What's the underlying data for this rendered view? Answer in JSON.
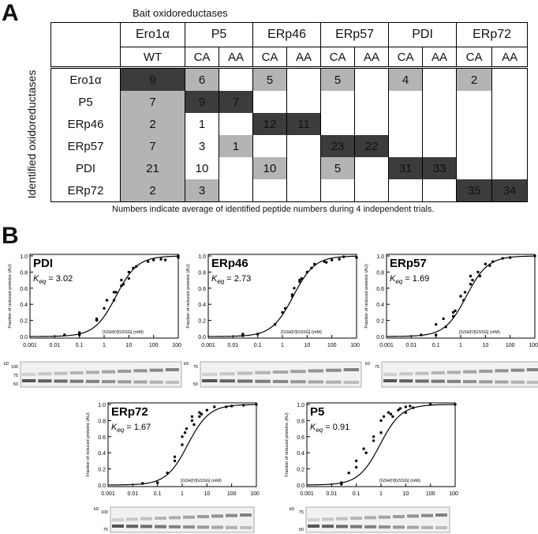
{
  "panel_a": {
    "letter": "A",
    "bait_title": "Bait oxidoreductases",
    "identified_label": "Identified oxidoreductases",
    "bait_groups": [
      {
        "name": "Ero1α",
        "variants": [
          "WT"
        ]
      },
      {
        "name": "P5",
        "variants": [
          "CA",
          "AA"
        ]
      },
      {
        "name": "ERp46",
        "variants": [
          "CA",
          "AA"
        ]
      },
      {
        "name": "ERp57",
        "variants": [
          "CA",
          "AA"
        ]
      },
      {
        "name": "PDI",
        "variants": [
          "CA",
          "AA"
        ]
      },
      {
        "name": "ERp72",
        "variants": [
          "CA",
          "AA"
        ]
      }
    ],
    "rows": [
      {
        "name": "Ero1α",
        "cells": [
          {
            "v": "9",
            "s": "dark"
          },
          {
            "v": "6",
            "s": "light"
          },
          {
            "v": "",
            "s": ""
          },
          {
            "v": "5",
            "s": "light"
          },
          {
            "v": "",
            "s": ""
          },
          {
            "v": "5",
            "s": "light"
          },
          {
            "v": "",
            "s": ""
          },
          {
            "v": "4",
            "s": "light"
          },
          {
            "v": "",
            "s": ""
          },
          {
            "v": "2",
            "s": "light"
          },
          {
            "v": "",
            "s": ""
          }
        ]
      },
      {
        "name": "P5",
        "cells": [
          {
            "v": "7",
            "s": "light"
          },
          {
            "v": "9",
            "s": "dark"
          },
          {
            "v": "7",
            "s": "dark"
          },
          {
            "v": "",
            "s": ""
          },
          {
            "v": "",
            "s": ""
          },
          {
            "v": "",
            "s": ""
          },
          {
            "v": "",
            "s": ""
          },
          {
            "v": "",
            "s": ""
          },
          {
            "v": "",
            "s": ""
          },
          {
            "v": "",
            "s": ""
          },
          {
            "v": "",
            "s": ""
          }
        ]
      },
      {
        "name": "ERp46",
        "cells": [
          {
            "v": "2",
            "s": "light"
          },
          {
            "v": "1",
            "s": ""
          },
          {
            "v": "",
            "s": ""
          },
          {
            "v": "12",
            "s": "dark"
          },
          {
            "v": "11",
            "s": "dark"
          },
          {
            "v": "",
            "s": ""
          },
          {
            "v": "",
            "s": ""
          },
          {
            "v": "",
            "s": ""
          },
          {
            "v": "",
            "s": ""
          },
          {
            "v": "",
            "s": ""
          },
          {
            "v": "",
            "s": ""
          }
        ]
      },
      {
        "name": "ERp57",
        "cells": [
          {
            "v": "7",
            "s": "light"
          },
          {
            "v": "3",
            "s": ""
          },
          {
            "v": "1",
            "s": "light"
          },
          {
            "v": "",
            "s": ""
          },
          {
            "v": "",
            "s": ""
          },
          {
            "v": "23",
            "s": "dark"
          },
          {
            "v": "22",
            "s": "dark"
          },
          {
            "v": "",
            "s": ""
          },
          {
            "v": "",
            "s": ""
          },
          {
            "v": "",
            "s": ""
          },
          {
            "v": "",
            "s": ""
          }
        ]
      },
      {
        "name": "PDI",
        "cells": [
          {
            "v": "21",
            "s": "light"
          },
          {
            "v": "10",
            "s": ""
          },
          {
            "v": "",
            "s": ""
          },
          {
            "v": "10",
            "s": "light"
          },
          {
            "v": "",
            "s": ""
          },
          {
            "v": "5",
            "s": "light"
          },
          {
            "v": "",
            "s": ""
          },
          {
            "v": "31",
            "s": "dark"
          },
          {
            "v": "33",
            "s": "dark"
          },
          {
            "v": "",
            "s": ""
          },
          {
            "v": "",
            "s": ""
          }
        ]
      },
      {
        "name": "ERp72",
        "cells": [
          {
            "v": "2",
            "s": "light"
          },
          {
            "v": "3",
            "s": "light"
          },
          {
            "v": "",
            "s": ""
          },
          {
            "v": "",
            "s": ""
          },
          {
            "v": "",
            "s": ""
          },
          {
            "v": "",
            "s": ""
          },
          {
            "v": "",
            "s": ""
          },
          {
            "v": "",
            "s": ""
          },
          {
            "v": "",
            "s": ""
          },
          {
            "v": "35",
            "s": "dark"
          },
          {
            "v": "34",
            "s": "dark"
          }
        ]
      }
    ],
    "footnote": "Numbers indicate average of identified peptide numbers during 4 independent trials.",
    "colors": {
      "dark": "#3c3c3c",
      "light": "#b4b4b4"
    }
  },
  "panel_b": {
    "letter": "B",
    "ylabel": "Fraction of reduced proteins (AU)",
    "xlabel": "[GSH]²/[GSSG] (mM)",
    "y_ticks": [
      "0.0",
      "0.2",
      "0.4",
      "0.6",
      "0.8",
      "1.0"
    ],
    "x_ticks": [
      "0.001",
      "0.01",
      "0.1",
      "1",
      "10",
      "100",
      "1000"
    ],
    "blot_unit": "kD"
  },
  "chart_data": [
    {
      "type": "scatter",
      "title": "PDI",
      "keq_label": "K",
      "keq_sub": "eq",
      "keq_value": "= 3.02",
      "keq": 3.02,
      "xscale": "log",
      "xlim": [
        0.001,
        1000
      ],
      "ylim": [
        0,
        1
      ],
      "x": [
        0.025,
        0.1,
        0.1,
        0.5,
        0.5,
        1,
        1.3,
        2.5,
        2.5,
        3,
        5,
        5,
        6,
        10,
        10,
        15,
        20,
        60,
        100,
        200,
        300,
        1000,
        1000
      ],
      "y": [
        0.02,
        0.02,
        0.05,
        0.2,
        0.22,
        0.35,
        0.45,
        0.55,
        0.45,
        0.55,
        0.7,
        0.63,
        0.65,
        0.8,
        0.72,
        0.85,
        0.87,
        0.93,
        0.95,
        0.96,
        0.95,
        1.0,
        0.98
      ],
      "blot_ticks": [
        "100",
        "75",
        "50"
      ],
      "bands": 10
    },
    {
      "type": "scatter",
      "title": "ERp46",
      "keq_label": "K",
      "keq_sub": "eq",
      "keq_value": "= 2.73",
      "keq": 2.73,
      "xscale": "log",
      "xlim": [
        0.001,
        1000
      ],
      "ylim": [
        0,
        1
      ],
      "x": [
        0.025,
        0.025,
        0.1,
        0.5,
        0.5,
        1,
        1.3,
        2.5,
        2.5,
        3,
        5,
        5,
        6,
        10,
        15,
        20,
        50,
        60,
        100,
        200,
        300,
        1000
      ],
      "y": [
        0.01,
        0.03,
        0.03,
        0.15,
        0.15,
        0.3,
        0.35,
        0.5,
        0.52,
        0.6,
        0.7,
        0.68,
        0.72,
        0.8,
        0.85,
        0.9,
        0.93,
        0.92,
        0.95,
        0.96,
        0.99,
        0.98
      ],
      "blot_ticks": [
        "75",
        "50"
      ],
      "bands": 9
    },
    {
      "type": "scatter",
      "title": "ERp57",
      "keq_label": "K",
      "keq_sub": "eq",
      "keq_value": "= 1.69",
      "keq": 1.69,
      "xscale": "log",
      "xlim": [
        0.001,
        1000
      ],
      "ylim": [
        0,
        1
      ],
      "x": [
        0.025,
        0.1,
        0.1,
        0.2,
        0.25,
        0.5,
        0.5,
        0.6,
        1,
        1.3,
        1.5,
        2.5,
        2.5,
        3,
        5,
        6,
        10,
        15,
        20,
        50,
        100,
        1000
      ],
      "y": [
        0.02,
        0.02,
        0.15,
        0.22,
        0.12,
        0.25,
        0.3,
        0.32,
        0.5,
        0.45,
        0.55,
        0.65,
        0.75,
        0.7,
        0.8,
        0.75,
        0.9,
        0.88,
        0.93,
        0.97,
        0.98,
        1.0
      ],
      "blot_ticks": [
        "75"
      ],
      "bands": 10
    },
    {
      "type": "scatter",
      "title": "ERp72",
      "keq_label": "K",
      "keq_sub": "eq",
      "keq_value": "= 1.67",
      "keq": 1.67,
      "xscale": "log",
      "xlim": [
        0.001,
        1000
      ],
      "ylim": [
        0,
        1
      ],
      "x": [
        0.025,
        0.1,
        0.25,
        0.5,
        0.5,
        1,
        1,
        1.3,
        1.5,
        2.5,
        2.5,
        3,
        5,
        5,
        6,
        10,
        20,
        60,
        100,
        300,
        1000
      ],
      "y": [
        0.02,
        0.03,
        0.15,
        0.35,
        0.3,
        0.6,
        0.5,
        0.65,
        0.7,
        0.8,
        0.85,
        0.75,
        0.85,
        0.9,
        0.88,
        0.93,
        0.97,
        0.97,
        0.98,
        0.99,
        1.0
      ],
      "blot_ticks": [
        "100",
        "75"
      ],
      "bands": 10
    },
    {
      "type": "scatter",
      "title": "P5",
      "keq_label": "K",
      "keq_sub": "eq",
      "keq_value": "= 0.91",
      "keq": 0.91,
      "xscale": "log",
      "xlim": [
        0.001,
        1000
      ],
      "ylim": [
        0,
        1
      ],
      "x": [
        0.025,
        0.025,
        0.05,
        0.1,
        0.1,
        0.2,
        0.25,
        0.5,
        0.5,
        1,
        1,
        1.3,
        2,
        2.5,
        3,
        5,
        6,
        10,
        10,
        15,
        20,
        100,
        1000
      ],
      "y": [
        0.01,
        0.03,
        0.15,
        0.22,
        0.3,
        0.45,
        0.4,
        0.6,
        0.55,
        0.8,
        0.65,
        0.85,
        0.9,
        0.88,
        0.85,
        0.93,
        0.95,
        0.97,
        0.9,
        0.98,
        0.96,
        1.0,
        1.0
      ],
      "blot_ticks": [
        "75",
        "50"
      ],
      "bands": 10
    }
  ]
}
